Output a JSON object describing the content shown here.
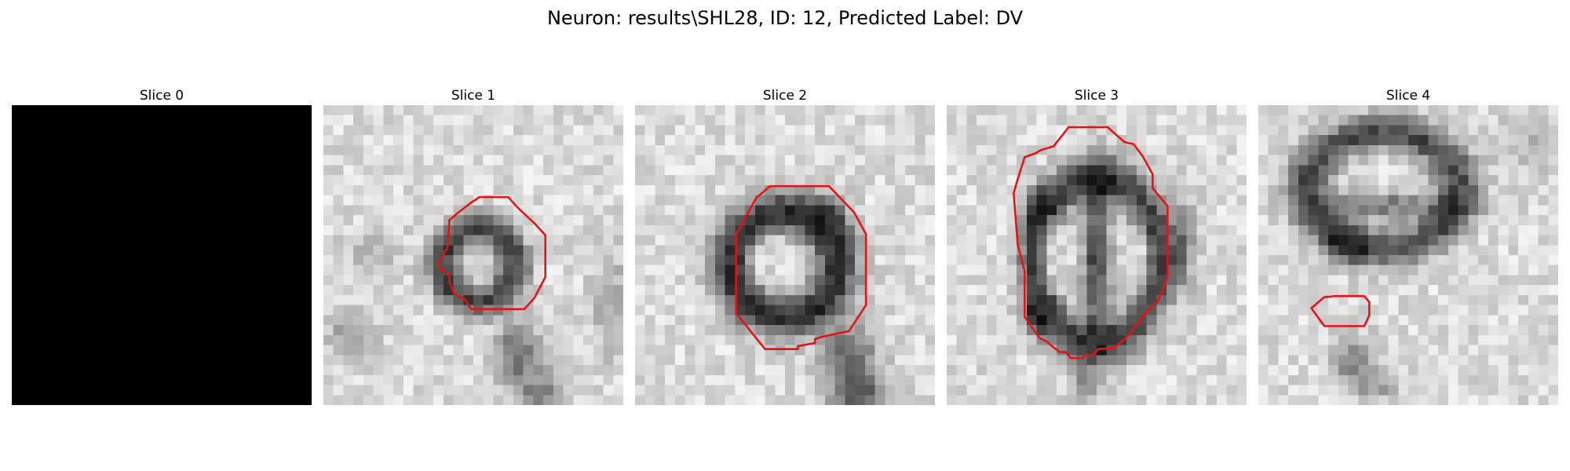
{
  "figure": {
    "title": "Neuron: results\\SHL28, ID: 12, Predicted Label: DV"
  },
  "panels": [
    {
      "title": "Slice 0",
      "image": "all-black slice",
      "contour": null
    },
    {
      "title": "Slice 1",
      "image": "grayscale EM patch with dark ring-shaped structure and tail toward bottom",
      "contour": "red polygon outline"
    },
    {
      "title": "Slice 2",
      "image": "grayscale EM patch with dark ring and lighter center, tail toward bottom-right",
      "contour": "red octagonal outline"
    },
    {
      "title": "Slice 3",
      "image": "grayscale EM patch with dark vertical oval with bright inner lobes",
      "contour": "red polygon outline"
    },
    {
      "title": "Slice 4",
      "image": "grayscale EM patch with dark membrane loop at top, small lighter region below",
      "contour": "small red hexagonal outline"
    }
  ],
  "colors": {
    "contour": "#e81010",
    "background": "#ffffff"
  }
}
